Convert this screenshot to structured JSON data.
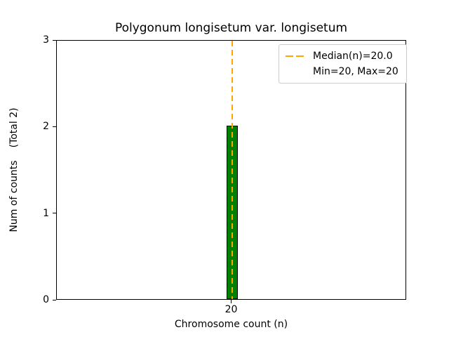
{
  "chart_data": {
    "type": "bar",
    "title": "Polygonum longisetum var. longisetum",
    "xlabel": "Chromosome count (n)",
    "ylabel": "Num of counts",
    "total_label": "(Total 2)",
    "categories": [
      "20"
    ],
    "values": [
      2
    ],
    "ylim": [
      0,
      3
    ],
    "yticks": [
      "0",
      "1",
      "2",
      "3"
    ],
    "grid": false,
    "bar_color": "#008000",
    "bar_edge_color": "#000000",
    "median_line_color": "#ffa500",
    "median_x": "20",
    "legend": {
      "position": "upper right",
      "entries": [
        {
          "symbol": "dashed-line",
          "label": "Median(n)=20.0"
        },
        {
          "symbol": "none",
          "label": "Min=20, Max=20"
        }
      ]
    }
  }
}
